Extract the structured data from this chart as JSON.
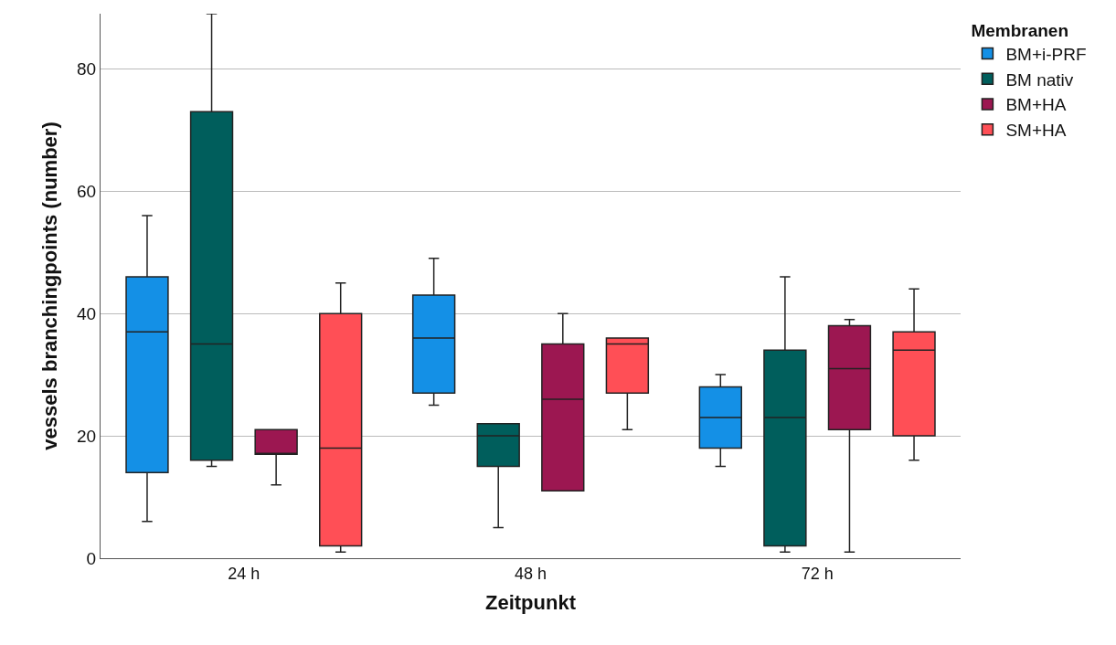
{
  "chart_data": {
    "type": "box",
    "xlabel": "Zeitpunkt",
    "ylabel": "vessels branchingpoints (number)",
    "legend_title": "Membranen",
    "categories": [
      "24 h",
      "48 h",
      "72 h"
    ],
    "ylim": [
      0,
      89
    ],
    "yticks": [
      0,
      20,
      40,
      60,
      80
    ],
    "grid": "y",
    "legend": "top right",
    "series": [
      {
        "name": "BM+i-PRF",
        "color": "#1490e6",
        "boxes": [
          {
            "low": 6,
            "q1": 14,
            "median": 37,
            "q3": 46,
            "high": 56
          },
          {
            "low": 25,
            "q1": 27,
            "median": 36,
            "q3": 43,
            "high": 49
          },
          {
            "low": 15,
            "q1": 18,
            "median": 23,
            "q3": 28,
            "high": 30
          }
        ]
      },
      {
        "name": "BM nativ",
        "color": "#005e5c",
        "boxes": [
          {
            "low": 15,
            "q1": 16,
            "median": 35,
            "q3": 73,
            "high": 89
          },
          {
            "low": 5,
            "q1": 15,
            "median": 20,
            "q3": 22,
            "high": 22
          },
          {
            "low": 1,
            "q1": 2,
            "median": 23,
            "q3": 34,
            "high": 46
          }
        ]
      },
      {
        "name": "BM+HA",
        "color": "#9c1751",
        "boxes": [
          {
            "low": 12,
            "q1": 17,
            "median": 17,
            "q3": 21,
            "high": 21
          },
          {
            "low": 11,
            "q1": 11,
            "median": 26,
            "q3": 35,
            "high": 40
          },
          {
            "low": 1,
            "q1": 21,
            "median": 31,
            "q3": 38,
            "high": 39
          }
        ]
      },
      {
        "name": "SM+HA",
        "color": "#ff4f56",
        "boxes": [
          {
            "low": 1,
            "q1": 2,
            "median": 18,
            "q3": 40,
            "high": 45
          },
          {
            "low": 21,
            "q1": 27,
            "median": 35,
            "q3": 36,
            "high": 36
          },
          {
            "low": 16,
            "q1": 20,
            "median": 34,
            "q3": 37,
            "high": 44
          }
        ]
      }
    ]
  }
}
